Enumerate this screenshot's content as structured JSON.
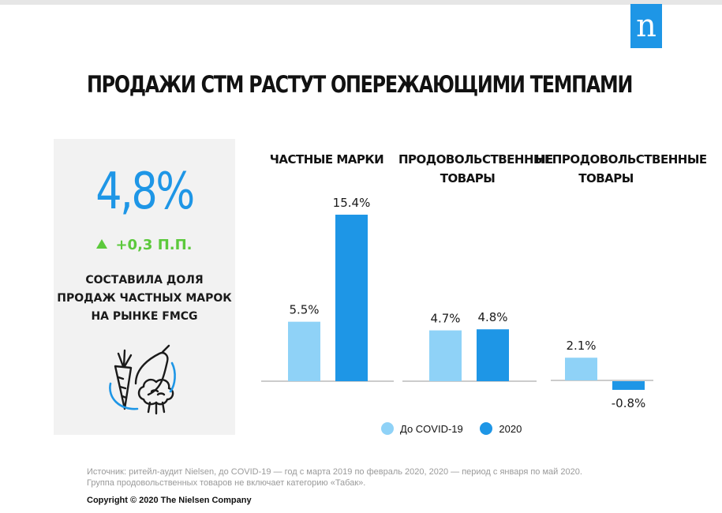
{
  "logo_letter": "n",
  "headline": "ПРОДАЖИ СТМ РАСТУТ ОПЕРЕЖАЮЩИМИ ТЕМПАМИ",
  "kpi": {
    "value": "4,8%",
    "delta": "+0,3 П.П.",
    "description": [
      "СОСТАВИЛА ДОЛЯ",
      "ПРОДАЖ ЧАСТНЫХ МАРОК",
      "НА РЫНКЕ FMCG"
    ],
    "icon": "produce-icon"
  },
  "colors": {
    "pre_covid": "#8fd2f7",
    "y2020": "#1e96e6",
    "accent_green": "#5cc93c"
  },
  "chart_data": {
    "type": "bar",
    "categories": [
      [
        "ЧАСТНЫЕ МАРКИ"
      ],
      [
        "ПРОДОВОЛЬСТВЕННЫЕ",
        "ТОВАРЫ"
      ],
      [
        "НЕПРОДОВОЛЬСТВЕННЫЕ",
        "ТОВАРЫ"
      ]
    ],
    "series": [
      {
        "name": "До COVID-19",
        "values": [
          5.5,
          4.7,
          2.1
        ],
        "labels": [
          "5.5%",
          "4.7%",
          "2.1%"
        ]
      },
      {
        "name": "2020",
        "values": [
          15.4,
          4.8,
          -0.8
        ],
        "labels": [
          "15.4%",
          "4.8%",
          "-0.8%"
        ]
      }
    ],
    "legend": "bottom"
  },
  "source": [
    "Источник: ритейл-аудит Nielsen, до COVID-19 — год с марта 2019 по февраль 2020, 2020 — период с января по май 2020.",
    "Группа продовольственных товаров не включает категорию «Табак»."
  ],
  "copyright": "Copyright © 2020 The Nielsen Company"
}
